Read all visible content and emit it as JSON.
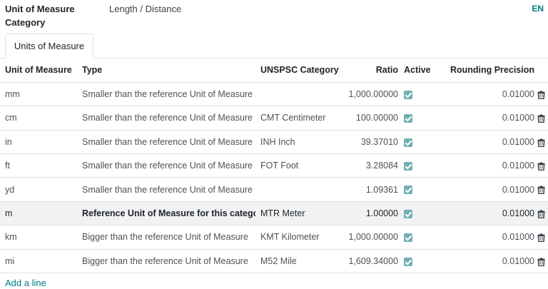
{
  "form": {
    "category_label": "Unit of Measure Category",
    "category_value": "Length / Distance",
    "language": "EN"
  },
  "tabs": [
    {
      "label": "Units of Measure"
    }
  ],
  "table": {
    "headers": {
      "uom": "Unit of Measure",
      "type": "Type",
      "unspsc": "UNSPSC Category",
      "ratio": "Ratio",
      "active": "Active",
      "rounding": "Rounding Precision"
    },
    "rows": [
      {
        "uom": "mm",
        "type": "Smaller than the reference Unit of Measure",
        "unspsc": "",
        "ratio": "1,000.00000",
        "active": true,
        "rounding": "0.01000"
      },
      {
        "uom": "cm",
        "type": "Smaller than the reference Unit of Measure",
        "unspsc": "CMT Centimeter",
        "ratio": "100.00000",
        "active": true,
        "rounding": "0.01000"
      },
      {
        "uom": "in",
        "type": "Smaller than the reference Unit of Measure",
        "unspsc": "INH Inch",
        "ratio": "39.37010",
        "active": true,
        "rounding": "0.01000"
      },
      {
        "uom": "ft",
        "type": "Smaller than the reference Unit of Measure",
        "unspsc": "FOT Foot",
        "ratio": "3.28084",
        "active": true,
        "rounding": "0.01000"
      },
      {
        "uom": "yd",
        "type": "Smaller than the reference Unit of Measure",
        "unspsc": "",
        "ratio": "1.09361",
        "active": true,
        "rounding": "0.01000"
      },
      {
        "uom": "m",
        "type": "Reference Unit of Measure for this category",
        "unspsc": "MTR Meter",
        "ratio": "1.00000",
        "active": true,
        "rounding": "0.01000"
      },
      {
        "uom": "km",
        "type": "Bigger than the reference Unit of Measure",
        "unspsc": "KMT Kilometer",
        "ratio": "1,000.00000",
        "active": true,
        "rounding": "0.01000"
      },
      {
        "uom": "mi",
        "type": "Bigger than the reference Unit of Measure",
        "unspsc": "M52 Mile",
        "ratio": "1,609.34000",
        "active": true,
        "rounding": "0.01000"
      }
    ],
    "add_line": "Add a line"
  },
  "icons": {
    "checkbox": "checkbox-checked-icon",
    "delete": "trash-icon"
  },
  "colors": {
    "accent": "#017e84",
    "checkbox": "#71b0b3",
    "reference_row_bg": "#f1f2f3"
  }
}
